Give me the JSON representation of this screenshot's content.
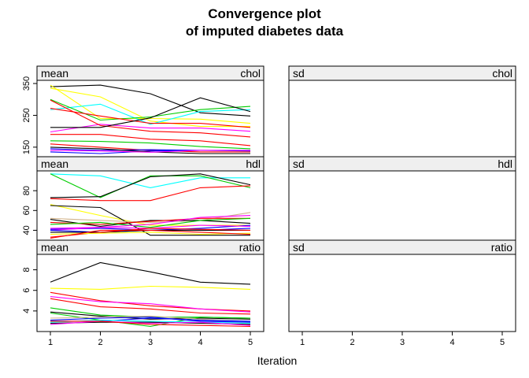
{
  "title_lines": [
    "Convergence plot",
    "of imputed diabetes data"
  ],
  "xlabel": "Iteration",
  "chart_data": {
    "type": "line",
    "title": "Convergence plot of imputed diabetes data",
    "xlabel": "Iteration",
    "x": [
      1,
      2,
      3,
      4,
      5
    ],
    "xlim": [
      1,
      5
    ],
    "x_ticks": [
      "1",
      "2",
      "3",
      "4",
      "5"
    ],
    "layout": "3 rows x 2 columns of strip panels",
    "panels": [
      {
        "stat": "mean",
        "variable": "chol",
        "ylim": [
          120,
          360
        ],
        "y_ticks": [
          150,
          250,
          350
        ],
        "series": [
          {
            "color": "#000000",
            "values": [
              340,
              345,
              318,
              258,
              248
            ]
          },
          {
            "color": "#ffff00",
            "values": [
              345,
              240,
              240,
              238,
              225
            ]
          },
          {
            "color": "#ffff00",
            "values": [
              335,
              308,
              232,
              215,
              215
            ]
          },
          {
            "color": "#00ffff",
            "values": [
              268,
              285,
              222,
              262,
              268
            ]
          },
          {
            "color": "#00cd00",
            "values": [
              300,
              235,
              245,
              268,
              278
            ]
          },
          {
            "color": "#ff0000",
            "values": [
              272,
              248,
              225,
              225,
              212
            ]
          },
          {
            "color": "#ff00ff",
            "values": [
              198,
              222,
              210,
              210,
              200
            ]
          },
          {
            "color": "#ff0000",
            "values": [
              298,
              218,
              200,
              195,
              182
            ]
          },
          {
            "color": "#000000",
            "values": [
              212,
              212,
              242,
              305,
              262
            ]
          },
          {
            "color": "#ff0000",
            "values": [
              190,
              190,
              175,
              170,
              155
            ]
          },
          {
            "color": "#00cd00",
            "values": [
              170,
              168,
              163,
              152,
              145
            ]
          },
          {
            "color": "#ff0000",
            "values": [
              160,
              150,
              140,
              135,
              135
            ]
          },
          {
            "color": "#0000ff",
            "values": [
              145,
              140,
              142,
              140,
              138
            ]
          },
          {
            "color": "#0000ff",
            "values": [
              135,
              130,
              138,
              140,
              140
            ]
          },
          {
            "color": "#000000",
            "values": [
              150,
              145,
              135,
              130,
              130
            ]
          },
          {
            "color": "#ff00ff",
            "values": [
              140,
              138,
              134,
              140,
              140
            ]
          }
        ]
      },
      {
        "stat": "sd",
        "variable": "chol",
        "ylim": [
          120,
          360
        ],
        "series": []
      },
      {
        "stat": "mean",
        "variable": "hdl",
        "ylim": [
          30,
          100
        ],
        "y_ticks": [
          40,
          60,
          80
        ],
        "series": [
          {
            "color": "#00ffff",
            "values": [
              97,
              95,
              83,
              93,
              93
            ]
          },
          {
            "color": "#00cd00",
            "values": [
              97,
              73,
              95,
              95,
              83
            ]
          },
          {
            "color": "#000000",
            "values": [
              73,
              74,
              94,
              97,
              86
            ]
          },
          {
            "color": "#ff0000",
            "values": [
              72,
              70,
              70,
              83,
              85
            ]
          },
          {
            "color": "#ffff00",
            "values": [
              66,
              55,
              45,
              45,
              45
            ]
          },
          {
            "color": "#000000",
            "values": [
              65,
              63,
              35,
              35,
              35
            ]
          },
          {
            "color": "#d2b48c",
            "values": [
              52,
              50,
              48,
              50,
              58
            ]
          },
          {
            "color": "#000000",
            "values": [
              51,
              44,
              50,
              50,
              47
            ]
          },
          {
            "color": "#ff0000",
            "values": [
              48,
              46,
              49,
              52,
              52
            ]
          },
          {
            "color": "#00cd00",
            "values": [
              46,
              48,
              43,
              50,
              52
            ]
          },
          {
            "color": "#ff00ff",
            "values": [
              42,
              43,
              46,
              53,
              55
            ]
          },
          {
            "color": "#0000ff",
            "values": [
              41,
              42,
              40,
              42,
              45
            ]
          },
          {
            "color": "#ff00ff",
            "values": [
              40,
              43,
              42,
              45,
              44
            ]
          },
          {
            "color": "#0000ff",
            "values": [
              40,
              38,
              40,
              40,
              42
            ]
          },
          {
            "color": "#000000",
            "values": [
              38,
              38,
              40,
              40,
              40
            ]
          },
          {
            "color": "#ff0000",
            "values": [
              33,
              38,
              42,
              41,
              40
            ]
          },
          {
            "color": "#ffff00",
            "values": [
              36,
              37,
              38,
              36,
              37
            ]
          },
          {
            "color": "#ff0000",
            "values": [
              32,
              40,
              40,
              38,
              36
            ]
          }
        ]
      },
      {
        "stat": "sd",
        "variable": "hdl",
        "ylim": [
          30,
          100
        ],
        "series": []
      },
      {
        "stat": "mean",
        "variable": "ratio",
        "ylim": [
          2.0,
          9.5
        ],
        "y_ticks": [
          4,
          6,
          8
        ],
        "series": [
          {
            "color": "#000000",
            "values": [
              6.8,
              8.7,
              7.8,
              6.8,
              6.6
            ]
          },
          {
            "color": "#ffff00",
            "values": [
              6.2,
              6.1,
              6.4,
              6.3,
              6.1
            ]
          },
          {
            "color": "#ff0000",
            "values": [
              5.8,
              5.0,
              4.5,
              4.2,
              4.0
            ]
          },
          {
            "color": "#ff00ff",
            "values": [
              5.4,
              4.9,
              4.7,
              4.2,
              3.9
            ]
          },
          {
            "color": "#ff0000",
            "values": [
              5.2,
              4.4,
              4.2,
              3.8,
              3.7
            ]
          },
          {
            "color": "#00cd00",
            "values": [
              4.3,
              3.6,
              3.4,
              3.4,
              3.3
            ]
          },
          {
            "color": "#000000",
            "values": [
              3.9,
              3.5,
              3.2,
              3.3,
              3.2
            ]
          },
          {
            "color": "#00cd00",
            "values": [
              3.8,
              3.1,
              2.5,
              3.4,
              3.3
            ]
          },
          {
            "color": "#0000ff",
            "values": [
              3.1,
              3.3,
              3.4,
              3.0,
              2.9
            ]
          },
          {
            "color": "#d2b48c",
            "values": [
              3.3,
              3.4,
              3.5,
              3.2,
              3.0
            ]
          },
          {
            "color": "#0000ff",
            "values": [
              3.0,
              3.0,
              3.3,
              3.1,
              3.0
            ]
          },
          {
            "color": "#00ffff",
            "values": [
              2.9,
              3.1,
              3.0,
              2.9,
              2.8
            ]
          },
          {
            "color": "#000000",
            "values": [
              2.8,
              2.9,
              2.9,
              2.8,
              2.7
            ]
          },
          {
            "color": "#ff00ff",
            "values": [
              2.7,
              3.0,
              2.8,
              2.9,
              2.6
            ]
          },
          {
            "color": "#ff0000",
            "values": [
              3.0,
              3.0,
              2.7,
              2.6,
              2.5
            ]
          }
        ]
      },
      {
        "stat": "sd",
        "variable": "ratio",
        "ylim": [
          2.0,
          9.5
        ],
        "series": []
      }
    ]
  }
}
